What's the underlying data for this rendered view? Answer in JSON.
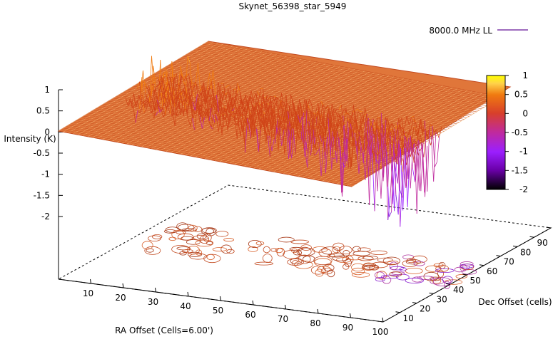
{
  "chart_data": {
    "type": "surface",
    "title": "Skynet_56398_star_5949",
    "xlabel": "RA Offset (Cells=6.00')",
    "ylabel": "Dec Offset (cells)",
    "zlabel": "Intensity (K)",
    "x_ticks": [
      10,
      20,
      30,
      40,
      50,
      60,
      70,
      80,
      90,
      100
    ],
    "y_ticks": [
      10,
      20,
      30,
      40,
      50,
      60,
      70,
      80,
      90,
      100
    ],
    "z_ticks": [
      1,
      0.5,
      0,
      -0.5,
      -1,
      -1.5,
      -2
    ],
    "xlim": [
      0,
      100
    ],
    "ylim": [
      0,
      100
    ],
    "zlim": [
      -2,
      1
    ],
    "colorbar": {
      "ticks": [
        1,
        0.5,
        0,
        -0.5,
        -1,
        -1.5,
        -2
      ],
      "range": [
        -2,
        1
      ],
      "palette": [
        "#000000",
        "#6a00a8",
        "#9b1fff",
        "#c02a9e",
        "#d8402a",
        "#f07a10",
        "#ffd24a",
        "#ffff00"
      ]
    },
    "legend": {
      "label": "8000.0 MHz LL",
      "placement": "top-right",
      "color": "#7e3aa8"
    },
    "baseline_intensity": 0,
    "noise_band": {
      "description_x": [
        5,
        100
      ],
      "y_range": [
        35,
        60
      ],
      "peak_max": 1,
      "trough_min": -2
    },
    "grid": false,
    "base_contour_plane": true
  }
}
